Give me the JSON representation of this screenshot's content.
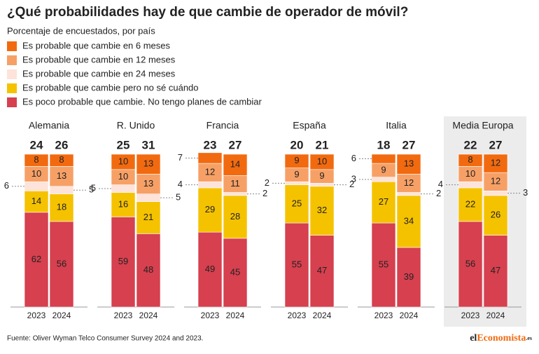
{
  "chart_data": {
    "type": "grouped-stacked-bar",
    "title": "¿Qué probabilidades hay de que cambie de operador de móvil?",
    "subtitle": "Porcentaje de encuestados, por país",
    "categories": [
      "Alemania",
      "R. Unido",
      "Francia",
      "España",
      "Italia",
      "Media Europa"
    ],
    "subcategories": [
      "2023",
      "2024"
    ],
    "highlight": "Media Europa",
    "ylim": [
      0,
      100
    ],
    "series": [
      {
        "name": "Es probable que cambie en 6 meses",
        "color": "#f26a0f",
        "values": [
          [
            8,
            8
          ],
          [
            10,
            13
          ],
          [
            7,
            14
          ],
          [
            9,
            10
          ],
          [
            6,
            13
          ],
          [
            8,
            12
          ]
        ]
      },
      {
        "name": "Es probable que cambie en 12 meses",
        "color": "#f7a066",
        "values": [
          [
            10,
            13
          ],
          [
            10,
            13
          ],
          [
            12,
            11
          ],
          [
            9,
            9
          ],
          [
            9,
            12
          ],
          [
            10,
            12
          ]
        ]
      },
      {
        "name": "Es probable que cambie en 24 meses",
        "color": "#fde3da",
        "values": [
          [
            6,
            5
          ],
          [
            5,
            5
          ],
          [
            4,
            2
          ],
          [
            2,
            2
          ],
          [
            3,
            2
          ],
          [
            4,
            3
          ]
        ]
      },
      {
        "name": "Es probable que cambie pero no sé cuándo",
        "color": "#f5c200",
        "values": [
          [
            14,
            18
          ],
          [
            16,
            21
          ],
          [
            29,
            28
          ],
          [
            25,
            32
          ],
          [
            27,
            34
          ],
          [
            22,
            26
          ]
        ]
      },
      {
        "name": "Es poco probable que cambie. No tengo planes de cambiar",
        "color": "#d6404f",
        "values": [
          [
            62,
            56
          ],
          [
            59,
            48
          ],
          [
            49,
            45
          ],
          [
            55,
            47
          ],
          [
            55,
            39
          ],
          [
            56,
            47
          ]
        ]
      }
    ],
    "totals": [
      [
        24,
        26
      ],
      [
        25,
        31
      ],
      [
        23,
        27
      ],
      [
        20,
        21
      ],
      [
        18,
        27
      ],
      [
        22,
        27
      ]
    ],
    "source": "Fuente: Oliver Wyman Telco Consumer Survey 2024 and 2023.",
    "brand": [
      "el",
      "Economista",
      ".es"
    ]
  }
}
